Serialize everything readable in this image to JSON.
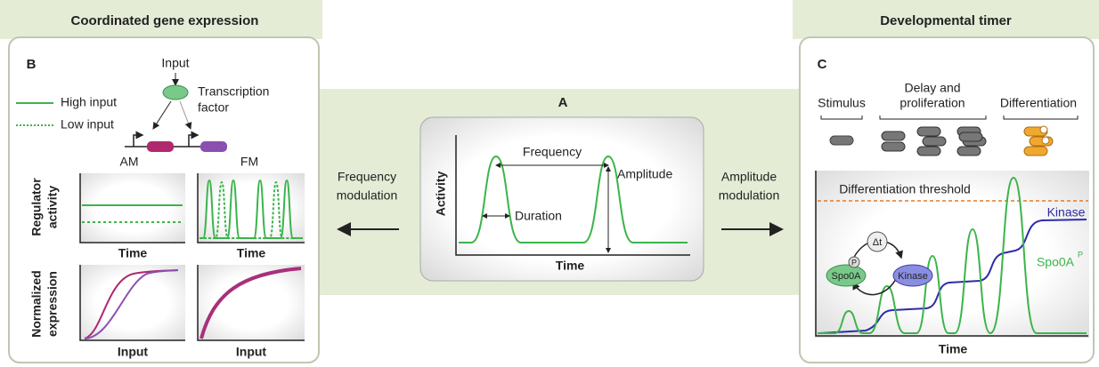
{
  "panel_b": {
    "header": "Coordinated gene expression",
    "label": "B",
    "input": "Input",
    "tf_label": [
      "Transcription",
      "factor"
    ],
    "legend": [
      "High input",
      "Low input"
    ],
    "am_title": "AM",
    "fm_title": "FM",
    "regulator_axis": [
      "Regulator",
      "activity"
    ],
    "expression_axis": [
      "Normalized",
      "expression"
    ],
    "time_labels": [
      "Time",
      "Time"
    ],
    "input_labels": [
      "Input",
      "Input"
    ]
  },
  "panel_a": {
    "label": "A",
    "frequency": "Frequency",
    "amplitude": "Amplitude",
    "duration": "Duration",
    "y_axis": "Activity",
    "x_axis": "Time",
    "left_arrow": [
      "Frequency",
      "modulation"
    ],
    "right_arrow": [
      "Amplitude",
      "modulation"
    ]
  },
  "panel_c": {
    "header": "Developmental timer",
    "label": "C",
    "stimulus": "Stimulus",
    "delay": [
      "Delay and",
      "proliferation"
    ],
    "differentiation": "Differentiation",
    "threshold": "Differentiation threshold",
    "kinase": "Kinase",
    "spo0a": "Spo0A",
    "spo0a_sup": "P",
    "delta": "Δt",
    "phospho": "P",
    "node_spo0a": "Spo0A",
    "node_kinase": "Kinase",
    "x_axis": "Time"
  }
}
